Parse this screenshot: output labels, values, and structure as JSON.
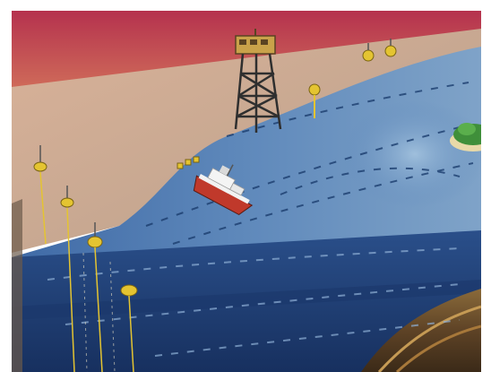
{
  "scene": {
    "subject": "ocean-monitoring-illustration",
    "colors": {
      "sky_top": "#b93a52",
      "sky_bottom": "#d4735a",
      "shallow_sea": "#c8a78e",
      "sea_surface": "#5d86b8",
      "deep_water": "#1f3f7a",
      "seabed": "#6b4a2c",
      "ship_hull": "#c0392b",
      "platform": "#3a3a3a",
      "buoy": "#e4c431",
      "island": "#3f8f3a"
    },
    "icons": [
      "research-ship-icon",
      "offshore-platform-icon",
      "buoy-icon",
      "island-icon"
    ]
  }
}
